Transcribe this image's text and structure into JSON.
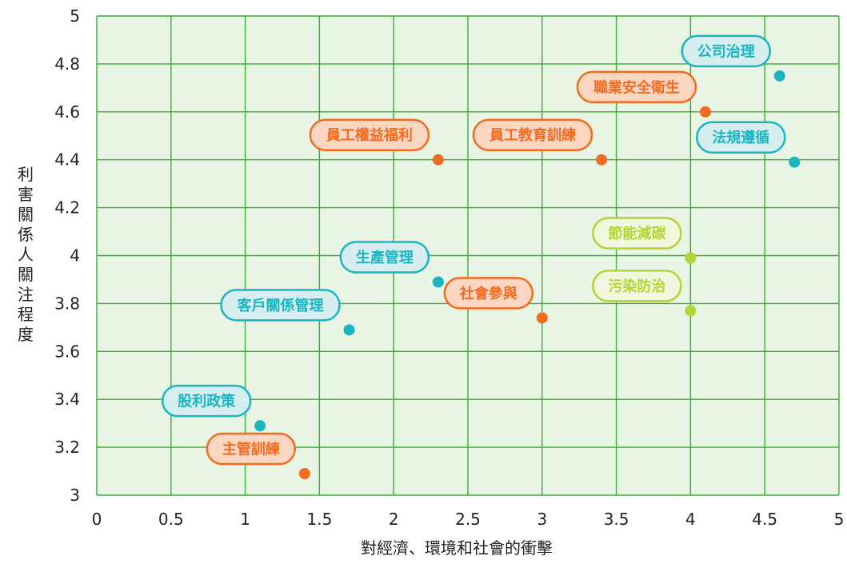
{
  "chart_data": {
    "type": "scatter",
    "xlabel": "對經濟、環境和社會的衝擊",
    "ylabel": "利害關係人關注程度",
    "xlim": [
      0,
      5
    ],
    "ylim": [
      3,
      5
    ],
    "x_ticks": [
      "0",
      "0.5",
      "1",
      "1.5",
      "2",
      "2.5",
      "3",
      "3.5",
      "4",
      "4.5",
      "5"
    ],
    "y_ticks": [
      "3",
      "3.2",
      "3.4",
      "3.6",
      "3.8",
      "4",
      "4.2",
      "4.4",
      "4.6",
      "4.8",
      "5"
    ],
    "grid": true,
    "plot_background": "#e8f5e4",
    "grid_color": "#3aaa35",
    "points": [
      {
        "label": "公司治理",
        "x": 4.6,
        "y": 4.75,
        "color": "#1ab5c1",
        "fill": "#d6eef0"
      },
      {
        "label": "職業安全衛生",
        "x": 4.1,
        "y": 4.6,
        "color": "#f26b21",
        "fill": "#fbd6c0"
      },
      {
        "label": "員工權益福利",
        "x": 2.3,
        "y": 4.4,
        "color": "#f26b21",
        "fill": "#fbd6c0"
      },
      {
        "label": "員工教育訓練",
        "x": 3.4,
        "y": 4.4,
        "color": "#f26b21",
        "fill": "#fbd6c0"
      },
      {
        "label": "法規遵循",
        "x": 4.7,
        "y": 4.39,
        "color": "#1ab5c1",
        "fill": "#d6eef0"
      },
      {
        "label": "節能減碳",
        "x": 4.0,
        "y": 3.99,
        "color": "#b5d334",
        "fill": "#f2f8dd"
      },
      {
        "label": "生產管理",
        "x": 2.3,
        "y": 3.89,
        "color": "#1ab5c1",
        "fill": "#d6eef0"
      },
      {
        "label": "社會參與",
        "x": 3.0,
        "y": 3.74,
        "color": "#f26b21",
        "fill": "#fbd6c0"
      },
      {
        "label": "污染防治",
        "x": 4.0,
        "y": 3.77,
        "color": "#b5d334",
        "fill": "#f2f8dd"
      },
      {
        "label": "客戶關係管理",
        "x": 1.7,
        "y": 3.69,
        "color": "#1ab5c1",
        "fill": "#d6eef0"
      },
      {
        "label": "股利政策",
        "x": 1.1,
        "y": 3.29,
        "color": "#1ab5c1",
        "fill": "#d6eef0"
      },
      {
        "label": "主管訓練",
        "x": 1.4,
        "y": 3.09,
        "color": "#f26b21",
        "fill": "#fbd6c0"
      }
    ]
  }
}
